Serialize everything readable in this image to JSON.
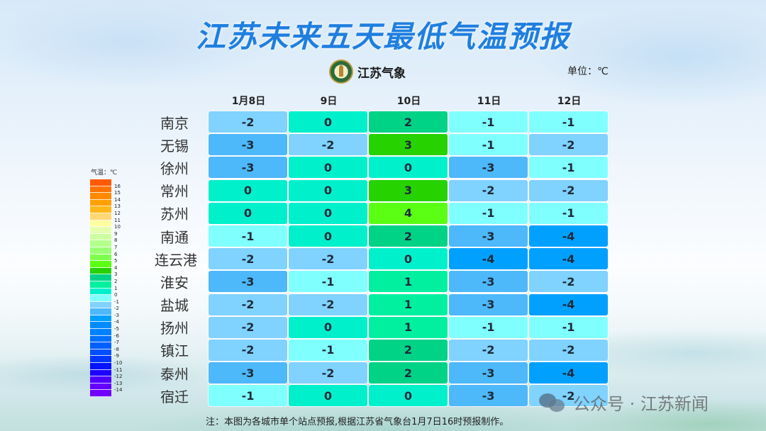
{
  "title": "江苏未来五天最低气温预报",
  "logo": {
    "text": "江苏气象",
    "icon": "meteorology-emblem-icon"
  },
  "unit": "单位：℃",
  "legend": {
    "title": "气温：℃",
    "items": [
      {
        "label": "16",
        "color": "#ff5a00"
      },
      {
        "label": "15",
        "color": "#ff7300"
      },
      {
        "label": "14",
        "color": "#ff8a00"
      },
      {
        "label": "13",
        "color": "#ffa000"
      },
      {
        "label": "12",
        "color": "#ffb81a"
      },
      {
        "label": "11",
        "color": "#ffd873"
      },
      {
        "label": "10",
        "color": "#ffff9e"
      },
      {
        "label": "9",
        "color": "#e6ffae"
      },
      {
        "label": "8",
        "color": "#ccffa0"
      },
      {
        "label": "7",
        "color": "#b3ff8c"
      },
      {
        "label": "6",
        "color": "#99ff73"
      },
      {
        "label": "5",
        "color": "#7dff4d"
      },
      {
        "label": "4",
        "color": "#5aff14"
      },
      {
        "label": "3",
        "color": "#26d200"
      },
      {
        "label": "2",
        "color": "#00d286"
      },
      {
        "label": "1",
        "color": "#00f0a0"
      },
      {
        "label": "0",
        "color": "#00f0cc"
      },
      {
        "label": "-1",
        "color": "#80ffff"
      },
      {
        "label": "-2",
        "color": "#80d2ff"
      },
      {
        "label": "-3",
        "color": "#4db8fa"
      },
      {
        "label": "-4",
        "color": "#00a0ff"
      },
      {
        "label": "-5",
        "color": "#008cff"
      },
      {
        "label": "-6",
        "color": "#0082ff"
      },
      {
        "label": "-7",
        "color": "#0070ff"
      },
      {
        "label": "-8",
        "color": "#0060ff"
      },
      {
        "label": "-9",
        "color": "#0050ff"
      },
      {
        "label": "-10",
        "color": "#0036ff"
      },
      {
        "label": "-11",
        "color": "#0014ff"
      },
      {
        "label": "-12",
        "color": "#1e00ff"
      },
      {
        "label": "-13",
        "color": "#5000ff"
      },
      {
        "label": "-14",
        "color": "#6400ff"
      },
      {
        "label": "",
        "color": "#7000ff"
      }
    ]
  },
  "columns": [
    "1月8日",
    "9日",
    "10日",
    "11日",
    "12日"
  ],
  "rows": [
    {
      "city": "南京",
      "values": [
        "-2",
        "0",
        "2",
        "-1",
        "-1"
      ]
    },
    {
      "city": "无锡",
      "values": [
        "-3",
        "-2",
        "3",
        "-1",
        "-2"
      ]
    },
    {
      "city": "徐州",
      "values": [
        "-3",
        "0",
        "0",
        "-3",
        "-1"
      ]
    },
    {
      "city": "常州",
      "values": [
        "0",
        "0",
        "3",
        "-2",
        "-2"
      ]
    },
    {
      "city": "苏州",
      "values": [
        "0",
        "0",
        "4",
        "-1",
        "-1"
      ]
    },
    {
      "city": "南通",
      "values": [
        "-1",
        "0",
        "2",
        "-3",
        "-4"
      ]
    },
    {
      "city": "连云港",
      "values": [
        "-2",
        "-2",
        "0",
        "-4",
        "-4"
      ]
    },
    {
      "city": "淮安",
      "values": [
        "-3",
        "-1",
        "1",
        "-3",
        "-2"
      ]
    },
    {
      "city": "盐城",
      "values": [
        "-2",
        "-2",
        "1",
        "-3",
        "-4"
      ]
    },
    {
      "city": "扬州",
      "values": [
        "-2",
        "0",
        "1",
        "-1",
        "-1"
      ]
    },
    {
      "city": "镇江",
      "values": [
        "-2",
        "-1",
        "2",
        "-2",
        "-2"
      ]
    },
    {
      "city": "泰州",
      "values": [
        "-3",
        "-2",
        "2",
        "-3",
        "-4"
      ]
    },
    {
      "city": "宿迁",
      "values": [
        "-1",
        "0",
        "0",
        "-3",
        "-2"
      ]
    }
  ],
  "note": "注：本图为各城市单个站点预报,根据江苏省气象台1月7日16时预报制作。",
  "watermark": {
    "text": "公众号 · 江苏新闻",
    "icon": "wechat-icon"
  },
  "chart_data": {
    "type": "heatmap",
    "title": "江苏未来五天最低气温预报",
    "unit": "℃",
    "x": [
      "1月8日",
      "9日",
      "10日",
      "11日",
      "12日"
    ],
    "y": [
      "南京",
      "无锡",
      "徐州",
      "常州",
      "苏州",
      "南通",
      "连云港",
      "淮安",
      "盐城",
      "扬州",
      "镇江",
      "泰州",
      "宿迁"
    ],
    "values": [
      [
        -2,
        0,
        2,
        -1,
        -1
      ],
      [
        -3,
        -2,
        3,
        -1,
        -2
      ],
      [
        -3,
        0,
        0,
        -3,
        -1
      ],
      [
        0,
        0,
        3,
        -2,
        -2
      ],
      [
        0,
        0,
        4,
        -1,
        -1
      ],
      [
        -1,
        0,
        2,
        -3,
        -4
      ],
      [
        -2,
        -2,
        0,
        -4,
        -4
      ],
      [
        -3,
        -1,
        1,
        -3,
        -2
      ],
      [
        -2,
        -2,
        1,
        -3,
        -4
      ],
      [
        -2,
        0,
        1,
        -1,
        -1
      ],
      [
        -2,
        -1,
        2,
        -2,
        -2
      ],
      [
        -3,
        -2,
        2,
        -3,
        -4
      ],
      [
        -1,
        0,
        0,
        -3,
        -2
      ]
    ],
    "colorbar": {
      "title": "气温：℃",
      "range": [
        -14,
        16
      ],
      "position": "left"
    }
  }
}
